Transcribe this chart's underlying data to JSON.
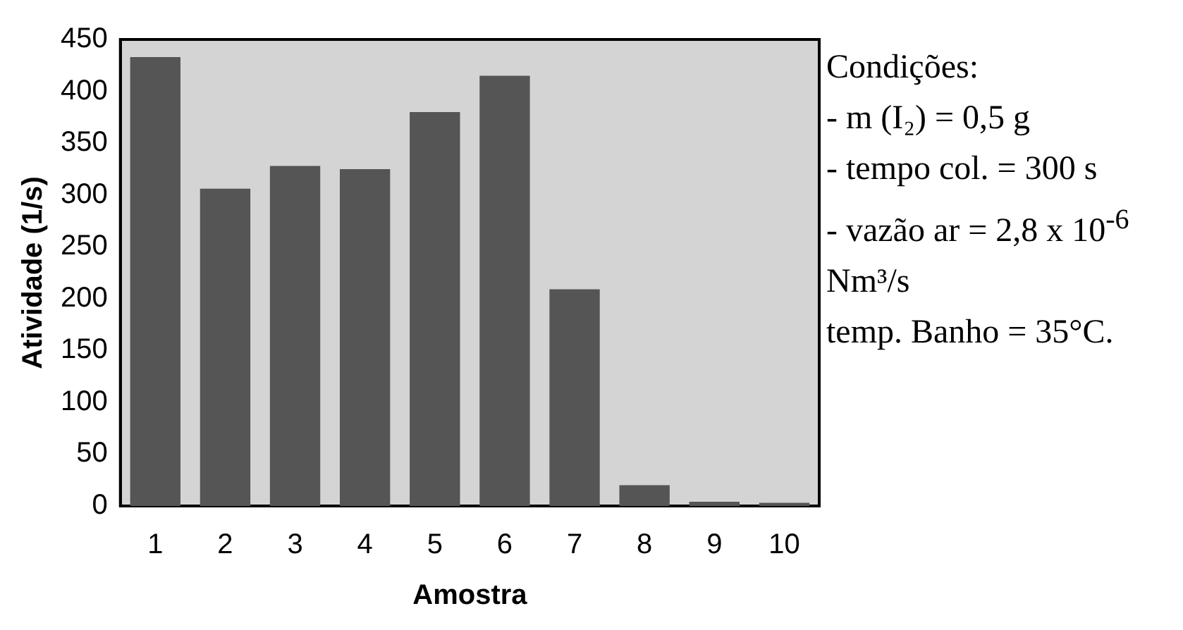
{
  "chart_data": {
    "type": "bar",
    "xlabel": "Amostra",
    "ylabel": "Atividade (1/s)",
    "categories": [
      "1",
      "2",
      "3",
      "4",
      "5",
      "6",
      "7",
      "8",
      "9",
      "10"
    ],
    "values": [
      433,
      306,
      328,
      325,
      380,
      415,
      209,
      20,
      4,
      3
    ],
    "color": "#555555",
    "ylim": [
      0,
      450
    ],
    "yticks": [
      0,
      50,
      100,
      150,
      200,
      250,
      300,
      350,
      400,
      450
    ],
    "grid": false,
    "legend": false,
    "annotations": [
      "Condições:",
      "- m (I₂) = 0,5 g",
      "- tempo col. = 300 s",
      "- vazão ar = 2,8 x 10$^{-6}$ Nm³/s",
      "temp. Banho = 35°C."
    ]
  }
}
